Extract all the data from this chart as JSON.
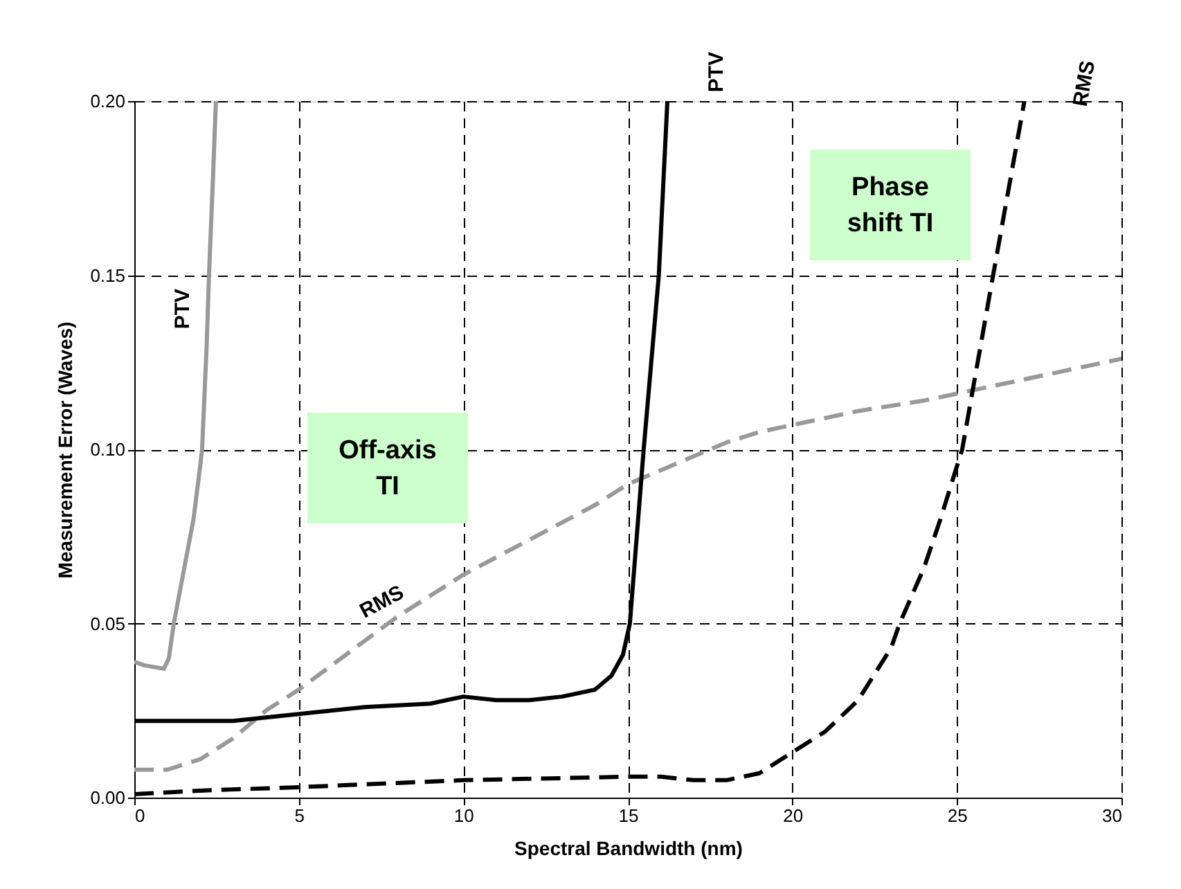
{
  "chart_data": {
    "type": "line",
    "xlabel": "Spectral Bandwidth (nm)",
    "ylabel": "Measurement Error (Waves)",
    "xlim": [
      0,
      30
    ],
    "xticks": [
      0,
      5,
      10,
      15,
      20,
      25,
      30
    ],
    "ylim": [
      0,
      0.2
    ],
    "yticks": [
      {
        "value": 0,
        "label": "0.00"
      },
      {
        "value": 0.05,
        "label": "0.05"
      },
      {
        "value": 0.1,
        "label": "0.10"
      },
      {
        "value": 0.15,
        "label": "0.15"
      },
      {
        "value": 0.2,
        "label": "0.20"
      }
    ],
    "grid": true,
    "series": [
      {
        "name": "PTV",
        "color": "#999999",
        "line_style": "solid",
        "x": [
          0,
          0.3,
          0.9,
          1.05,
          1.2,
          1.5,
          1.8,
          2.0,
          2.06,
          2.2,
          2.27,
          2.4,
          2.48
        ],
        "values": [
          0.039,
          0.038,
          0.037,
          0.04,
          0.05,
          0.065,
          0.08,
          0.095,
          0.1,
          0.13,
          0.15,
          0.18,
          0.2
        ]
      },
      {
        "name": "RMS",
        "color": "#999999",
        "line_style": "dashed",
        "x": [
          0,
          1,
          2,
          3,
          4,
          5,
          6,
          7,
          8,
          9,
          10,
          11,
          12,
          13,
          14,
          15,
          16,
          17,
          18,
          19,
          20,
          22,
          24,
          25,
          26,
          28,
          30
        ],
        "values": [
          0.008,
          0.008,
          0.011,
          0.017,
          0.025,
          0.031,
          0.038,
          0.045,
          0.052,
          0.058,
          0.064,
          0.069,
          0.074,
          0.079,
          0.084,
          0.09,
          0.094,
          0.098,
          0.102,
          0.105,
          0.107,
          0.111,
          0.114,
          0.116,
          0.118,
          0.122,
          0.126
        ]
      },
      {
        "name": "PTV",
        "color": "#000000",
        "line_style": "solid",
        "x": [
          0,
          3,
          5,
          7,
          9,
          10,
          11,
          12,
          13,
          14,
          14.5,
          14.85,
          15.06,
          15.48,
          15.94,
          16.2
        ],
        "values": [
          0.022,
          0.022,
          0.024,
          0.026,
          0.027,
          0.029,
          0.028,
          0.028,
          0.029,
          0.031,
          0.035,
          0.041,
          0.05,
          0.1,
          0.15,
          0.2
        ]
      },
      {
        "name": "RMS",
        "color": "#000000",
        "line_style": "dashed",
        "x": [
          0,
          2,
          5,
          10,
          15,
          16,
          17,
          18,
          19,
          20,
          21,
          22,
          23,
          23.26,
          24,
          24.5,
          25.16,
          26.1,
          27.05
        ],
        "values": [
          0.001,
          0.002,
          0.003,
          0.005,
          0.006,
          0.006,
          0.005,
          0.005,
          0.007,
          0.013,
          0.019,
          0.028,
          0.043,
          0.05,
          0.066,
          0.08,
          0.1,
          0.15,
          0.2
        ]
      }
    ],
    "annotations": [
      "Off-axis\nTI",
      "Phase\nshift TI"
    ]
  }
}
